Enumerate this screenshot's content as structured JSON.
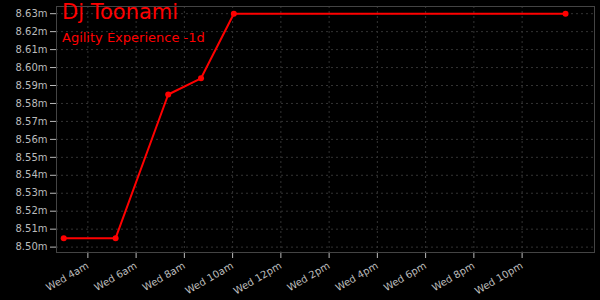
{
  "chart_data": {
    "type": "line",
    "title": "Dj Toonami",
    "subtitle": "Agility Experience -1d",
    "x": [
      3.0,
      5.15,
      7.33,
      8.69,
      10.05,
      23.8
    ],
    "values": [
      8.505,
      8.505,
      8.585,
      8.594,
      8.63,
      8.63
    ],
    "color": "#ff0000",
    "marker": "circle",
    "grid": true,
    "xlim": [
      2.7,
      25
    ],
    "xticks": [
      {
        "value": 4,
        "label": "Wed 4am"
      },
      {
        "value": 6,
        "label": "Wed 6am"
      },
      {
        "value": 8,
        "label": "Wed 8am"
      },
      {
        "value": 10,
        "label": "Wed 10am"
      },
      {
        "value": 12,
        "label": "Wed 12pm"
      },
      {
        "value": 14,
        "label": "Wed 2pm"
      },
      {
        "value": 16,
        "label": "Wed 4pm"
      },
      {
        "value": 18,
        "label": "Wed 6pm"
      },
      {
        "value": 20,
        "label": "Wed 8pm"
      },
      {
        "value": 22,
        "label": "Wed 10pm"
      }
    ],
    "ylim": [
      8.497,
      8.634
    ],
    "yticks": [
      {
        "value": 8.5,
        "label": "8.50m"
      },
      {
        "value": 8.51,
        "label": "8.51m"
      },
      {
        "value": 8.52,
        "label": "8.52m"
      },
      {
        "value": 8.53,
        "label": "8.53m"
      },
      {
        "value": 8.54,
        "label": "8.54m"
      },
      {
        "value": 8.55,
        "label": "8.55m"
      },
      {
        "value": 8.56,
        "label": "8.56m"
      },
      {
        "value": 8.57,
        "label": "8.57m"
      },
      {
        "value": 8.58,
        "label": "8.58m"
      },
      {
        "value": 8.59,
        "label": "8.59m"
      },
      {
        "value": 8.6,
        "label": "8.60m"
      },
      {
        "value": 8.61,
        "label": "8.61m"
      },
      {
        "value": 8.62,
        "label": "8.62m"
      },
      {
        "value": 8.63,
        "label": "8.63m"
      }
    ]
  }
}
